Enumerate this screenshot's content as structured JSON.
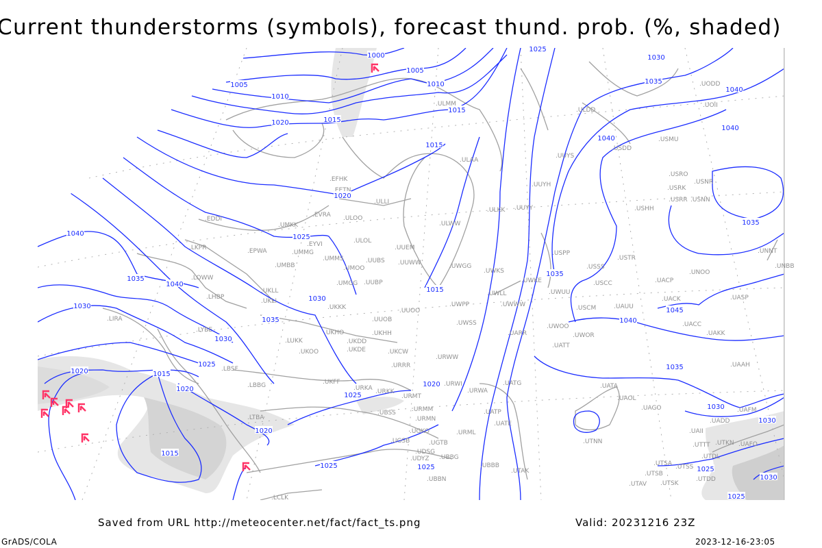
{
  "title": "Current thunderstorms (symbols), forecast thund. prob. (%, shaded)",
  "footer": {
    "saved_from": "Saved from URL http://meteocenter.net/fact/fact_ts.png",
    "valid": "Valid: 20231216 23Z",
    "software": "GrADS/COLA",
    "generated": "2023-12-16-23:05"
  },
  "colors": {
    "isobars": "#1a2cff",
    "coastlines": "#a0a0a0",
    "station_labels": "#909090",
    "thunderstorm_symbols": "#ff3366",
    "probability_shading": [
      "#e6e6e6",
      "#d4d4d4",
      "#c0c0c0"
    ]
  },
  "legend": {
    "symbols": "current thunderstorms",
    "shading": "forecast thunderstorm probability (%)",
    "contours": "sea-level pressure isobars (hPa)"
  },
  "map": {
    "isobar_labels": [
      "1000",
      "1005",
      "1005",
      "1010",
      "1010",
      "1015",
      "1015",
      "1020",
      "1015",
      "1025",
      "1030",
      "1035",
      "1040",
      "1040",
      "1040",
      "1020",
      "1025",
      "1030",
      "1035",
      "1015",
      "1035",
      "1035",
      "1040",
      "1045",
      "1035",
      "1030",
      "1040",
      "1035",
      "1040",
      "1030",
      "1030",
      "1025",
      "1020",
      "1015",
      "1020",
      "1015",
      "1020",
      "1025",
      "1025",
      "1020",
      "1025",
      "1025",
      "1030",
      "1030",
      "1025"
    ],
    "stations": [
      "ULAA",
      "EFHK",
      "EETN",
      "ULLI",
      "EVRA",
      "ULOO",
      "UMKK",
      "ULOL",
      "EYVI",
      "UMMG",
      "EPWA",
      "UUEM",
      "ULWW",
      "UMMS",
      "UMOO",
      "UUBS",
      "UUWW",
      "UWGG",
      "UMBB",
      "LKPR",
      "EDDI",
      "LOWW",
      "UMGG",
      "UUBP",
      "UKLL",
      "LHBP",
      "UKLI",
      "UKKK",
      "UUOO",
      "UUOB",
      "LIRA",
      "LYBE",
      "UKHH",
      "UKDD",
      "UKHO",
      "LUKK",
      "UKOO",
      "UKDE",
      "UKCW",
      "URRR",
      "LBSF",
      "UWPP",
      "UWSS",
      "URWW",
      "URWI",
      "UKFF",
      "URKA",
      "URKK",
      "URMT",
      "LBBG",
      "URMM",
      "UBSS",
      "URMN",
      "UGKO",
      "UGSB",
      "UGTB",
      "UDSG",
      "UBBG",
      "UDYZ",
      "UBBN",
      "LCLK",
      "LTBA",
      "URWA",
      "UATG",
      "UATP",
      "UATE",
      "URML",
      "UBBB",
      "UTAK",
      "UATA",
      "UAOL",
      "UAGO",
      "UTNN",
      "UTSA",
      "UTSB",
      "UTAV",
      "UTSK",
      "UTSS",
      "UTDD",
      "UAII",
      "UTTT",
      "UTDL",
      "UTKN",
      "UAFO",
      "UAFM",
      "UADD",
      "UAAH",
      "UATT",
      "UWOR",
      "UWOO",
      "UARR",
      "UWKS",
      "UWKE",
      "UWUU",
      "UWLL",
      "UWWW",
      "UUYY",
      "ULKK",
      "UUYH",
      "UUYS",
      "USPP",
      "USSS",
      "USCC",
      "USCM",
      "UAUU",
      "USTR",
      "USHH",
      "USRO",
      "USRK",
      "USNR",
      "USRR",
      "USNN",
      "USMU",
      "USDD",
      "ULDD",
      "UODD",
      "UOII",
      "UNNT",
      "UNBB",
      "UNOO",
      "UACP",
      "UACK",
      "UACC",
      "UAKK",
      "UASP",
      "ULMM"
    ],
    "thunderstorm_symbol_icon": "thunderstorm-icon",
    "thunderstorm_count": 9
  }
}
